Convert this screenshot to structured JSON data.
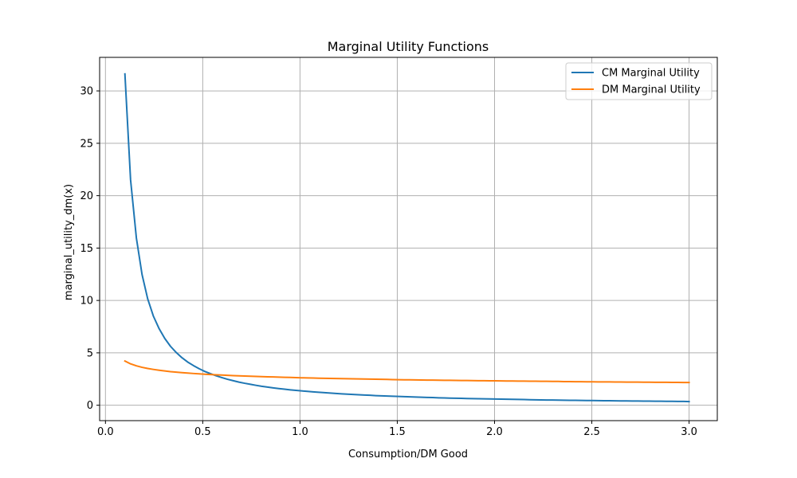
{
  "chart_data": {
    "type": "line",
    "title": "Marginal Utility Functions",
    "xlabel": "Consumption/DM Good",
    "ylabel": "marginal_utility_dm(x)",
    "xlim": [
      -0.03,
      3.145
    ],
    "ylim": [
      -1.47,
      33.2
    ],
    "xticks": [
      0.0,
      0.5,
      1.0,
      1.5,
      2.0,
      2.5,
      3.0
    ],
    "xtick_labels": [
      "0.0",
      "0.5",
      "1.0",
      "1.5",
      "2.0",
      "2.5",
      "3.0"
    ],
    "yticks": [
      0,
      5,
      10,
      15,
      20,
      25,
      30
    ],
    "ytick_labels": [
      "0",
      "5",
      "10",
      "15",
      "20",
      "25",
      "30"
    ],
    "grid": true,
    "legend_position": "top-right",
    "series": [
      {
        "name": "CM Marginal Utility",
        "color": "#1f77b4",
        "x": [
          0.1,
          0.129,
          0.159,
          0.188,
          0.217,
          0.246,
          0.276,
          0.305,
          0.334,
          0.364,
          0.393,
          0.422,
          0.452,
          0.481,
          0.51,
          0.54,
          0.569,
          0.598,
          0.627,
          0.657,
          0.686,
          0.715,
          0.745,
          0.774,
          0.803,
          0.833,
          0.862,
          0.891,
          0.92,
          0.95,
          0.979,
          1.008,
          1.038,
          1.067,
          1.096,
          1.126,
          1.155,
          1.184,
          1.214,
          1.243,
          1.272,
          1.301,
          1.331,
          1.36,
          1.389,
          1.419,
          1.448,
          1.477,
          1.507,
          1.536,
          1.565,
          1.594,
          1.624,
          1.653,
          1.682,
          1.712,
          1.741,
          1.77,
          1.8,
          1.829,
          1.858,
          1.888,
          1.917,
          1.946,
          1.975,
          2.005,
          2.034,
          2.063,
          2.093,
          2.122,
          2.151,
          2.181,
          2.21,
          2.239,
          2.268,
          2.298,
          2.327,
          2.356,
          2.386,
          2.415,
          2.444,
          2.474,
          2.503,
          2.532,
          2.562,
          2.591,
          2.62,
          2.649,
          2.679,
          2.708,
          2.737,
          2.767,
          2.796,
          2.825,
          2.855,
          2.884,
          2.913,
          2.942,
          2.972,
          3.0
        ],
        "values": [
          31.62,
          21.53,
          15.95,
          12.48,
          10.16,
          8.52,
          7.3,
          6.37,
          5.63,
          5.03,
          4.54,
          4.13,
          3.79,
          3.49,
          3.23,
          3.01,
          2.81,
          2.64,
          2.48,
          2.34,
          2.21,
          2.1,
          2.0,
          1.9,
          1.81,
          1.73,
          1.66,
          1.59,
          1.53,
          1.47,
          1.42,
          1.37,
          1.32,
          1.28,
          1.24,
          1.2,
          1.16,
          1.12,
          1.09,
          1.06,
          1.03,
          1.0,
          0.97,
          0.95,
          0.92,
          0.9,
          0.88,
          0.86,
          0.84,
          0.82,
          0.8,
          0.78,
          0.76,
          0.74,
          0.73,
          0.71,
          0.7,
          0.68,
          0.67,
          0.66,
          0.64,
          0.63,
          0.62,
          0.61,
          0.6,
          0.59,
          0.58,
          0.57,
          0.56,
          0.55,
          0.54,
          0.53,
          0.52,
          0.51,
          0.5,
          0.5,
          0.49,
          0.48,
          0.47,
          0.47,
          0.46,
          0.45,
          0.45,
          0.44,
          0.43,
          0.43,
          0.42,
          0.41,
          0.41,
          0.4,
          0.4,
          0.39,
          0.39,
          0.38,
          0.38,
          0.37,
          0.37,
          0.36,
          0.36,
          0.35
        ]
      },
      {
        "name": "DM Marginal Utility",
        "color": "#ff7f0e",
        "x": [
          0.1,
          0.129,
          0.159,
          0.188,
          0.217,
          0.246,
          0.276,
          0.305,
          0.334,
          0.364,
          0.393,
          0.422,
          0.452,
          0.481,
          0.51,
          0.54,
          0.569,
          0.598,
          0.627,
          0.657,
          0.686,
          0.715,
          0.745,
          0.774,
          0.803,
          0.833,
          0.862,
          0.891,
          0.92,
          0.95,
          0.979,
          1.008,
          1.038,
          1.067,
          1.096,
          1.126,
          1.155,
          1.184,
          1.214,
          1.243,
          1.272,
          1.301,
          1.331,
          1.36,
          1.389,
          1.419,
          1.448,
          1.477,
          1.507,
          1.536,
          1.565,
          1.594,
          1.624,
          1.653,
          1.682,
          1.712,
          1.741,
          1.77,
          1.8,
          1.829,
          1.858,
          1.888,
          1.917,
          1.946,
          1.975,
          2.005,
          2.034,
          2.063,
          2.093,
          2.122,
          2.151,
          2.181,
          2.21,
          2.239,
          2.268,
          2.298,
          2.327,
          2.356,
          2.386,
          2.415,
          2.444,
          2.474,
          2.503,
          2.532,
          2.562,
          2.591,
          2.62,
          2.649,
          2.679,
          2.708,
          2.737,
          2.767,
          2.796,
          2.825,
          2.855,
          2.884,
          2.913,
          2.942,
          2.972,
          3.0
        ],
        "values": [
          4.22,
          3.95,
          3.76,
          3.62,
          3.51,
          3.42,
          3.34,
          3.27,
          3.21,
          3.16,
          3.11,
          3.07,
          3.03,
          3.0,
          2.96,
          2.93,
          2.9,
          2.88,
          2.85,
          2.83,
          2.81,
          2.79,
          2.77,
          2.75,
          2.73,
          2.71,
          2.7,
          2.68,
          2.66,
          2.65,
          2.64,
          2.62,
          2.61,
          2.6,
          2.58,
          2.57,
          2.56,
          2.55,
          2.54,
          2.53,
          2.52,
          2.51,
          2.5,
          2.49,
          2.48,
          2.47,
          2.46,
          2.45,
          2.44,
          2.43,
          2.43,
          2.42,
          2.41,
          2.4,
          2.4,
          2.39,
          2.38,
          2.38,
          2.37,
          2.36,
          2.36,
          2.35,
          2.34,
          2.34,
          2.33,
          2.33,
          2.32,
          2.31,
          2.31,
          2.3,
          2.3,
          2.29,
          2.29,
          2.28,
          2.28,
          2.27,
          2.27,
          2.26,
          2.26,
          2.25,
          2.25,
          2.24,
          2.24,
          2.23,
          2.23,
          2.23,
          2.22,
          2.22,
          2.21,
          2.21,
          2.21,
          2.2,
          2.2,
          2.19,
          2.19,
          2.19,
          2.18,
          2.18,
          2.17,
          2.17
        ]
      }
    ]
  }
}
